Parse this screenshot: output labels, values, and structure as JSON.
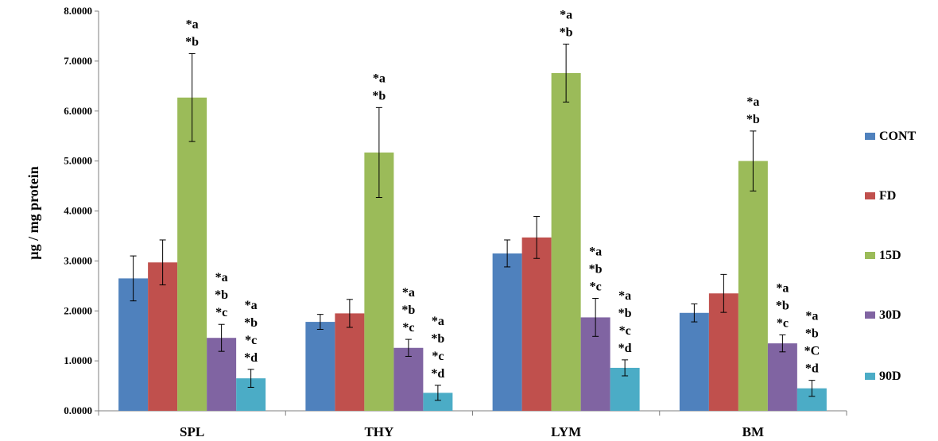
{
  "chart_data": {
    "type": "bar",
    "title": "",
    "xlabel": "",
    "ylabel": "µg / mg protein",
    "ylim": [
      0,
      8
    ],
    "yticks": [
      "0.0000",
      "1.0000",
      "2.0000",
      "3.0000",
      "4.0000",
      "5.0000",
      "6.0000",
      "7.0000",
      "8.0000"
    ],
    "grid": false,
    "legend_position": "right",
    "categories": [
      "SPL",
      "THY",
      "LYM",
      "BM"
    ],
    "series": [
      {
        "name": "CONT",
        "color": "#4F81BD",
        "values": [
          2.65,
          1.78,
          3.15,
          1.96
        ],
        "errors": [
          0.45,
          0.15,
          0.27,
          0.18
        ]
      },
      {
        "name": "FD",
        "color": "#C0504D",
        "values": [
          2.97,
          1.95,
          3.47,
          2.35
        ],
        "errors": [
          0.45,
          0.28,
          0.42,
          0.38
        ]
      },
      {
        "name": "15D",
        "color": "#9BBB59",
        "values": [
          6.27,
          5.17,
          6.76,
          5.0
        ],
        "errors": [
          0.88,
          0.9,
          0.58,
          0.6
        ]
      },
      {
        "name": "30D",
        "color": "#8064A2",
        "values": [
          1.46,
          1.26,
          1.87,
          1.35
        ],
        "errors": [
          0.27,
          0.17,
          0.38,
          0.17
        ]
      },
      {
        "name": "90D",
        "color": "#4BACC6",
        "values": [
          0.65,
          0.36,
          0.86,
          0.45
        ],
        "errors": [
          0.18,
          0.15,
          0.16,
          0.16
        ]
      }
    ],
    "annotations": [
      [
        [],
        [],
        [
          "*a",
          "*b"
        ],
        [
          "*a",
          "*b",
          "*c"
        ],
        [
          "*a",
          "*b",
          "*c",
          "*d"
        ]
      ],
      [
        [],
        [],
        [
          "*a",
          "*b"
        ],
        [
          "*a",
          "*b",
          "*c"
        ],
        [
          "*a",
          "*b",
          "*c",
          "*d"
        ]
      ],
      [
        [],
        [],
        [
          "*a",
          "*b"
        ],
        [
          "*a",
          "*b",
          "*c"
        ],
        [
          "*a",
          "*b",
          "*c",
          "*d"
        ]
      ],
      [
        [],
        [],
        [
          "*a",
          "*b"
        ],
        [
          "*a",
          "*b",
          "*c"
        ],
        [
          "*a",
          "*b",
          "*C",
          "*d"
        ]
      ]
    ]
  }
}
